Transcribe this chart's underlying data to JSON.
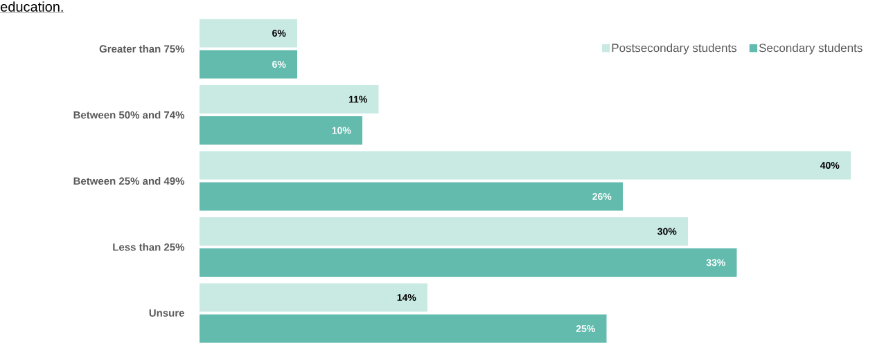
{
  "chart_data": {
    "type": "bar",
    "orientation": "horizontal",
    "title": "education.",
    "categories": [
      "Greater than 75%",
      "Between 50% and 74%",
      "Between 25% and 49%",
      "Less than 25%",
      "Unsure"
    ],
    "series": [
      {
        "name": "Postsecondary students",
        "color": "#c9e9e3",
        "values": [
          6,
          11,
          40,
          30,
          14
        ],
        "value_labels": [
          "6%",
          "11%",
          "40%",
          "30%",
          "14%"
        ]
      },
      {
        "name": "Secondary students",
        "color": "#63bbae",
        "values": [
          6,
          10,
          26,
          33,
          25
        ],
        "value_labels": [
          "6%",
          "10%",
          "26%",
          "33%",
          "25%"
        ]
      }
    ],
    "legend": "top right"
  }
}
